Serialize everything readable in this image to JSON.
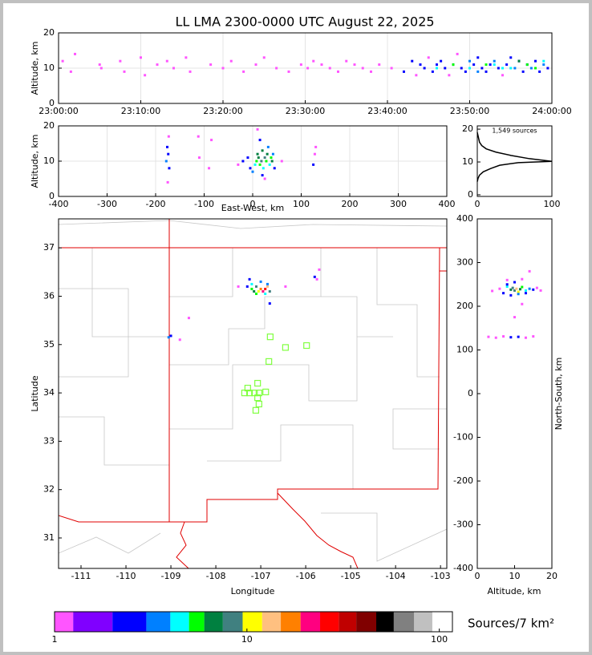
{
  "chart_data": [
    {
      "type": "scatter",
      "title": "LL LMA 2300-0000 UTC August 22, 2025",
      "ylabel": "Altitude, km",
      "xlim": [
        0,
        60
      ],
      "xticks": [
        {
          "value": 0,
          "label": "23:00:00"
        },
        {
          "value": 10,
          "label": "23:10:00"
        },
        {
          "value": 20,
          "label": "23:20:00"
        },
        {
          "value": 30,
          "label": "23:30:00"
        },
        {
          "value": 40,
          "label": "23:40:00"
        },
        {
          "value": 50,
          "label": "23:50:00"
        },
        {
          "value": 60,
          "label": "24:00:00"
        }
      ],
      "ylim": [
        0,
        20
      ],
      "yticks": [
        0,
        10,
        20
      ],
      "grid": true,
      "series": [
        {
          "x": [
            0.5,
            1.5,
            2,
            5,
            5.2,
            7.5,
            8,
            10,
            10.5,
            12,
            13.2,
            14,
            15.5,
            16,
            18.5,
            20,
            21,
            22.5,
            24,
            25,
            26.5,
            28,
            29.5,
            30.3,
            31,
            32,
            33,
            34,
            35,
            36,
            37,
            38,
            39,
            40.5,
            42,
            43,
            43.5,
            44,
            44.5,
            45,
            45.5,
            46,
            46.5,
            47,
            47.5,
            48,
            48.5,
            49,
            49.5,
            50,
            50.5,
            51,
            51.5,
            52,
            52.5,
            53,
            53.5,
            54,
            54.5,
            55,
            55.5,
            56,
            56.5,
            57,
            57.5,
            58,
            58.5,
            59,
            59.5,
            46,
            48,
            50,
            52,
            54,
            56,
            58,
            51,
            53,
            55,
            57,
            59
          ],
          "values": [
            12,
            9,
            14,
            11,
            10,
            12,
            9,
            13,
            8,
            11,
            12,
            10,
            13,
            9,
            11,
            10,
            12,
            9,
            11,
            13,
            10,
            9,
            11,
            10,
            12,
            11,
            10,
            9,
            12,
            11,
            10,
            9,
            11,
            10,
            9,
            12,
            8,
            11,
            10,
            13,
            9,
            11,
            12,
            10,
            8,
            11,
            14,
            10,
            9,
            12,
            11,
            13,
            10,
            9,
            11,
            12,
            10,
            8,
            11,
            13,
            10,
            12,
            9,
            11,
            10,
            12,
            9,
            11,
            10,
            10,
            11,
            10,
            11,
            10,
            12,
            10,
            9,
            11,
            10,
            11,
            12
          ],
          "density": [
            1,
            1,
            1,
            1,
            1,
            1,
            1,
            1,
            1,
            1,
            1,
            1,
            1,
            1,
            1,
            1,
            1,
            1,
            1,
            1,
            1,
            1,
            1,
            1,
            1,
            1,
            1,
            1,
            1,
            1,
            1,
            1,
            1,
            1,
            2,
            2,
            1,
            2,
            2,
            1,
            2,
            2,
            2,
            2,
            1,
            2,
            1,
            2,
            2,
            3,
            2,
            2,
            2,
            2,
            2,
            3,
            2,
            1,
            2,
            2,
            3,
            2,
            2,
            2,
            3,
            2,
            2,
            3,
            2,
            4,
            5,
            4,
            5,
            4,
            6,
            5,
            3,
            4,
            4,
            5,
            4
          ]
        }
      ]
    },
    {
      "type": "scatter",
      "xlabel": "East-West, km",
      "ylabel": "Altitude, km",
      "xlim": [
        -400,
        400
      ],
      "xticks": [
        -400,
        -300,
        -200,
        -100,
        0,
        100,
        200,
        300,
        400
      ],
      "ylim": [
        0,
        20
      ],
      "yticks": [
        0,
        10,
        20
      ],
      "grid": true,
      "series": [
        {
          "x": [
            -175,
            -172,
            -178,
            -174,
            -176,
            -173,
            -110,
            -112,
            -90,
            -85,
            -30,
            -20,
            -10,
            -5,
            0,
            5,
            8,
            10,
            12,
            15,
            18,
            20,
            22,
            25,
            28,
            30,
            32,
            35,
            38,
            40,
            42,
            45,
            10,
            15,
            20,
            25,
            60,
            125,
            128,
            130
          ],
          "values": [
            4,
            8,
            10,
            12,
            14,
            17,
            11,
            17,
            8,
            16,
            9,
            10,
            11,
            8,
            7,
            9,
            10,
            12,
            11,
            9,
            10,
            13,
            8,
            11,
            10,
            12,
            14,
            9,
            11,
            10,
            12,
            8,
            19,
            16,
            6,
            5,
            10,
            9,
            12,
            14
          ],
          "density": [
            1,
            2,
            3,
            2,
            2,
            1,
            1,
            1,
            1,
            1,
            1,
            2,
            2,
            2,
            3,
            4,
            5,
            6,
            7,
            5,
            9,
            6,
            4,
            8,
            5,
            6,
            3,
            4,
            5,
            6,
            3,
            2,
            1,
            2,
            2,
            1,
            1,
            2,
            1,
            1
          ]
        }
      ]
    },
    {
      "type": "line",
      "annotation": "1,549 sources",
      "xlim": [
        0,
        100
      ],
      "xticks": [
        0,
        100
      ],
      "ylim": [
        -0.5,
        21
      ],
      "yticks": [
        0,
        10,
        20
      ],
      "color": "#000000",
      "x": [
        0,
        1,
        3,
        8,
        18,
        30,
        55,
        100,
        70,
        45,
        25,
        12,
        6,
        3,
        2,
        1,
        0
      ],
      "values": [
        4,
        5,
        6,
        7,
        8,
        9,
        9.8,
        10.2,
        11,
        12,
        13,
        14,
        15,
        16,
        17,
        18,
        19
      ]
    },
    {
      "type": "map",
      "xlabel": "Longitude",
      "ylabel": "Latitude",
      "xlim": [
        -111.5,
        -102.86
      ],
      "xticks": [
        -111,
        -110,
        -109,
        -108,
        -107,
        -106,
        -105,
        -104,
        -103
      ],
      "ylim": [
        30.37,
        37.6
      ],
      "yticks": [
        31,
        32,
        33,
        34,
        35,
        36,
        37
      ],
      "series": [
        {
          "x": [
            -107.3,
            -107.2,
            -107.15,
            -107.1,
            -107.05,
            -107.0,
            -106.95,
            -106.9,
            -106.85,
            -106.8,
            -107.1,
            -107.0,
            -106.9,
            -107.25,
            -106.8,
            -107.5,
            -106.45,
            -109.05,
            -109.0,
            -108.8,
            -108.6,
            -105.8,
            -105.75,
            -105.7,
            -106.85,
            -107.2
          ],
          "values": [
            36.2,
            36.25,
            36.1,
            36.2,
            36.1,
            36.15,
            36.1,
            36.15,
            36.2,
            36.1,
            36.05,
            36.3,
            36.05,
            36.35,
            35.85,
            36.2,
            36.2,
            35.15,
            35.18,
            35.1,
            35.55,
            36.4,
            36.35,
            36.55,
            36.25,
            36.15
          ],
          "density": [
            2,
            4,
            6,
            8,
            11,
            16,
            20,
            25,
            14,
            9,
            5,
            3,
            4,
            2,
            2,
            1,
            1,
            3,
            2,
            1,
            1,
            2,
            1,
            1,
            3,
            5
          ]
        },
        {
          "marker": "square-open",
          "color": "#80ff40",
          "x": [
            -106.79,
            -106.45,
            -105.98,
            -106.82,
            -107.07,
            -107.29,
            -107.36,
            -107.25,
            -107.14,
            -107.04,
            -106.89,
            -107.07,
            -107.04,
            -107.11
          ],
          "values": [
            35.16,
            34.94,
            34.98,
            34.65,
            34.2,
            34.1,
            34.0,
            34.0,
            34.0,
            34.0,
            34.02,
            33.9,
            33.77,
            33.64
          ]
        }
      ]
    },
    {
      "type": "scatter",
      "xlabel": "Altitude, km",
      "ylabel": "North-South, km",
      "xlim": [
        0,
        20
      ],
      "xticks": [
        0,
        10,
        20
      ],
      "ylim": [
        -400,
        400
      ],
      "yticks": [
        -400,
        -300,
        -200,
        -100,
        0,
        100,
        200,
        300,
        400
      ],
      "series": [
        {
          "x": [
            4,
            6,
            7,
            8,
            9,
            9.5,
            10,
            10.5,
            11,
            11.5,
            12,
            13,
            14,
            15,
            16,
            17,
            8,
            10,
            12,
            9,
            11,
            13,
            3,
            5,
            7,
            9,
            11,
            13,
            15,
            10,
            12,
            8,
            14
          ],
          "values": [
            235,
            240,
            230,
            245,
            238,
            242,
            236,
            240,
            233,
            239,
            244,
            236,
            240,
            238,
            242,
            236,
            260,
            255,
            262,
            225,
            228,
            230,
            130,
            128,
            131,
            129,
            130,
            128,
            131,
            175,
            205,
            250,
            280
          ],
          "density": [
            1,
            1,
            2,
            4,
            6,
            8,
            9,
            12,
            10,
            7,
            5,
            4,
            3,
            2,
            1,
            1,
            1,
            2,
            1,
            2,
            3,
            2,
            1,
            1,
            1,
            2,
            2,
            1,
            1,
            1,
            1,
            2,
            1
          ]
        }
      ]
    },
    {
      "type": "colorbar",
      "label": "Sources/7 km²",
      "log": true,
      "xlim": [
        1,
        117
      ],
      "xticks": [
        1,
        10,
        100
      ],
      "bounds": [
        1,
        1.25,
        2,
        3,
        4,
        5,
        6,
        7.5,
        9.5,
        12,
        15,
        19,
        24,
        30,
        37,
        47,
        58,
        74,
        92,
        117
      ],
      "colors": [
        "#ff55ff",
        "#8000ff",
        "#0000ff",
        "#0080ff",
        "#00ffff",
        "#00ff00",
        "#008040",
        "#408080",
        "#ffff00",
        "#ffc080",
        "#ff8000",
        "#ff0080",
        "#ff0000",
        "#c00000",
        "#800000",
        "#000000",
        "#808080",
        "#c0c0c0",
        "#ffffff"
      ]
    }
  ]
}
